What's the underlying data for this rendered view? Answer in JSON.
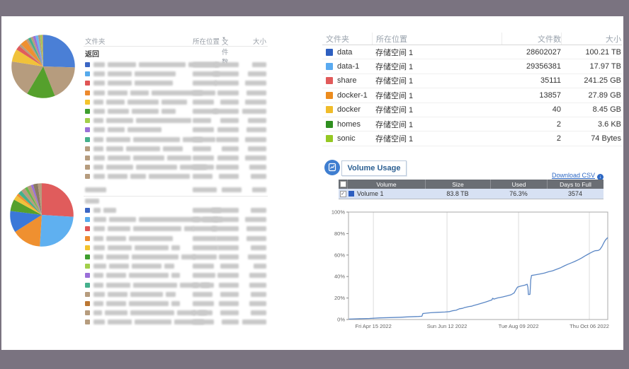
{
  "frame": {
    "bg": "#7a7380",
    "content_bg": "#ffffff"
  },
  "left_report": {
    "headers": {
      "folder": "文件夹",
      "location": "所在位置",
      "files": "文件数",
      "size": "大小",
      "sort_indicator": "▼"
    },
    "back_label": "返回",
    "blur_color": "#c9c9c9",
    "top_rows": [
      {
        "c": "#3b66c4",
        "segs": [
          16,
          40,
          66,
          44
        ],
        "lw": 36,
        "fw": 34,
        "sw": 20
      },
      {
        "c": "#56aaec",
        "segs": [
          16,
          34,
          58
        ],
        "lw": 38,
        "fw": 36,
        "sw": 26
      },
      {
        "c": "#e05555",
        "segs": [
          16,
          34,
          54
        ],
        "lw": 34,
        "fw": 34,
        "sw": 30
      },
      {
        "c": "#ed8a2d",
        "segs": [
          16,
          28,
          26,
          72
        ],
        "lw": 32,
        "fw": 30,
        "sw": 28
      },
      {
        "c": "#f3c32c",
        "segs": [
          14,
          26,
          44,
          36
        ],
        "lw": 30,
        "fw": 26,
        "sw": 30
      },
      {
        "c": "#3e9e2e",
        "segs": [
          16,
          30,
          38,
          20
        ],
        "lw": 36,
        "fw": 36,
        "sw": 34
      },
      {
        "c": "#a2cf4a",
        "segs": [
          14,
          38,
          78
        ],
        "lw": 26,
        "fw": 26,
        "sw": 26
      },
      {
        "c": "#9a6fd8",
        "segs": [
          16,
          24,
          48
        ],
        "lw": 30,
        "fw": 30,
        "sw": 28
      },
      {
        "c": "#45b08c",
        "segs": [
          14,
          34,
          66,
          28
        ],
        "lw": 32,
        "fw": 32,
        "sw": 30
      },
      {
        "c": "#b69c7e",
        "segs": [
          14,
          24,
          48,
          28
        ],
        "lw": 26,
        "fw": 24,
        "sw": 26
      },
      {
        "c": "#b69c7e",
        "segs": [
          16,
          32,
          44,
          34
        ],
        "lw": 30,
        "fw": 30,
        "sw": 30
      },
      {
        "c": "#b69c7e",
        "segs": [
          14,
          38,
          58,
          38
        ],
        "lw": 30,
        "fw": 32,
        "sw": 24
      },
      {
        "c": "#b69c7e",
        "segs": [
          16,
          28,
          22,
          58
        ],
        "lw": 28,
        "fw": 28,
        "sw": 22
      }
    ],
    "bottom_header_blur": {
      "folder_w": 30,
      "loc_w": 34,
      "files_w": 28,
      "size_w": 20,
      "back_w": 20
    },
    "bottom_rows": [
      {
        "c": "#3b66c4",
        "segs": [
          10,
          18
        ],
        "lw": 40,
        "fw": 38,
        "sw": 22
      },
      {
        "c": "#56aaec",
        "segs": [
          18,
          38,
          86,
          28
        ],
        "lw": 36,
        "fw": 36,
        "sw": 30
      },
      {
        "c": "#e05555",
        "segs": [
          16,
          32,
          68,
          14
        ],
        "lw": 34,
        "fw": 38,
        "sw": 28
      },
      {
        "c": "#ed8a2d",
        "segs": [
          14,
          28,
          62
        ],
        "lw": 34,
        "fw": 32,
        "sw": 28
      },
      {
        "c": "#f3c32c",
        "segs": [
          16,
          34,
          48,
          12
        ],
        "lw": 36,
        "fw": 30,
        "sw": 22
      },
      {
        "c": "#3e9e2e",
        "segs": [
          14,
          32,
          66,
          20
        ],
        "lw": 34,
        "fw": 28,
        "sw": 26
      },
      {
        "c": "#a2cf4a",
        "segs": [
          18,
          28,
          42,
          14
        ],
        "lw": 30,
        "fw": 26,
        "sw": 18
      },
      {
        "c": "#9a6fd8",
        "segs": [
          14,
          28,
          56,
          12
        ],
        "lw": 32,
        "fw": 30,
        "sw": 24
      },
      {
        "c": "#45b08c",
        "segs": [
          14,
          34,
          62,
          26,
          12
        ],
        "lw": 30,
        "fw": 28,
        "sw": 24
      },
      {
        "c": "#b69c7e",
        "segs": [
          16,
          28,
          46,
          14
        ],
        "lw": 28,
        "fw": 26,
        "sw": 22
      },
      {
        "c": "#bb7733",
        "segs": [
          14,
          28,
          56,
          12
        ],
        "lw": 30,
        "fw": 28,
        "sw": 24
      },
      {
        "c": "#b69c7e",
        "segs": [
          12,
          32,
          62,
          26,
          12
        ],
        "lw": 28,
        "fw": 26,
        "sw": 22
      },
      {
        "c": "#b69c7e",
        "segs": [
          16,
          34,
          52,
          42
        ],
        "lw": 30,
        "fw": 24,
        "sw": 34
      }
    ]
  },
  "folder_table": {
    "headers": [
      "文件夹",
      "所在位置",
      "文件数",
      "大小"
    ],
    "rows": [
      {
        "color": "#2e5fc0",
        "name": "data",
        "location": "存储空间 1",
        "files": "28602027",
        "size": "100.21 TB"
      },
      {
        "color": "#59aaf0",
        "name": "data-1",
        "location": "存储空间 1",
        "files": "29356381",
        "size": "17.97 TB"
      },
      {
        "color": "#e15a5a",
        "name": "share",
        "location": "存储空间 1",
        "files": "35111",
        "size": "241.25 GB"
      },
      {
        "color": "#ec8c1e",
        "name": "docker-1",
        "location": "存储空间 1",
        "files": "13857",
        "size": "27.89 GB"
      },
      {
        "color": "#f0bc2a",
        "name": "docker",
        "location": "存储空间 1",
        "files": "40",
        "size": "8.45 GB"
      },
      {
        "color": "#2f8f1f",
        "name": "homes",
        "location": "存储空间 1",
        "files": "2",
        "size": "3.6 KB"
      },
      {
        "color": "#95c823",
        "name": "sonic",
        "location": "存储空间 1",
        "files": "2",
        "size": "74 Bytes"
      }
    ]
  },
  "volume_usage": {
    "title": "Volume Usage",
    "download_csv": "Download CSV",
    "download_icon": "↓",
    "table": {
      "headers": [
        "Volume",
        "Size",
        "Used",
        "Days to Full"
      ],
      "rows": [
        {
          "color": "#2e5fc0",
          "name": "Volume 1",
          "size": "83.8 TB",
          "used": "76.3%",
          "days_to_full": "3574",
          "checked": "✓"
        }
      ]
    }
  },
  "chart_data": [
    {
      "type": "pie",
      "name": "top-left-pie",
      "slices": [
        {
          "color": "#4a7fd6",
          "value": 25.5
        },
        {
          "color": "#b69c7e",
          "value": 18.5
        },
        {
          "color": "#55a02c",
          "value": 14.5
        },
        {
          "color": "#b69c7e",
          "value": 19.0
        },
        {
          "color": "#f0c23a",
          "value": 6.5
        },
        {
          "color": "#e05c5c",
          "value": 2.3
        },
        {
          "color": "#b69c7e",
          "value": 1.2
        },
        {
          "color": "#ef9030",
          "value": 3.4
        },
        {
          "color": "#b69c7e",
          "value": 1.2
        },
        {
          "color": "#45b08c",
          "value": 1.4
        },
        {
          "color": "#b69c7e",
          "value": 1.2
        },
        {
          "color": "#9a6fd8",
          "value": 1.3
        },
        {
          "color": "#6db5ee",
          "value": 1.4
        },
        {
          "color": "#b69c7e",
          "value": 1.1
        },
        {
          "color": "#a2cf4a",
          "value": 0.8
        },
        {
          "color": "#b69c7e",
          "value": 0.7
        }
      ]
    },
    {
      "type": "pie",
      "name": "bottom-left-pie",
      "slices": [
        {
          "color": "#e05c5c",
          "value": 26
        },
        {
          "color": "#5fb0f0",
          "value": 25
        },
        {
          "color": "#ef9030",
          "value": 15
        },
        {
          "color": "#3b78d8",
          "value": 11
        },
        {
          "color": "#55a02c",
          "value": 6
        },
        {
          "color": "#f0c23a",
          "value": 2.5
        },
        {
          "color": "#ef9030",
          "value": 1.3
        },
        {
          "color": "#45b08c",
          "value": 2.0
        },
        {
          "color": "#b69c7e",
          "value": 2.2
        },
        {
          "color": "#67b84a",
          "value": 1.4
        },
        {
          "color": "#b69c7e",
          "value": 2.0
        },
        {
          "color": "#9a6fd8",
          "value": 1.2
        },
        {
          "color": "#8a7a62",
          "value": 2.4
        },
        {
          "color": "#b69c7e",
          "value": 2.0
        }
      ]
    },
    {
      "type": "line",
      "name": "volume-usage-trend",
      "ylim": [
        0,
        100
      ],
      "yticks": [
        "0%",
        "20%",
        "40%",
        "60%",
        "80%",
        "100%"
      ],
      "xticks": [
        {
          "label": "Fri Apr 15 2022",
          "f": 0.096
        },
        {
          "label": "Sun Jun 12 2022",
          "f": 0.38
        },
        {
          "label": "Tue Aug 09 2022",
          "f": 0.656
        },
        {
          "label": "Thu Oct 06 2022",
          "f": 0.929
        }
      ],
      "grid": "vertical-only",
      "line_color": "#5b87c5",
      "series": [
        {
          "name": "Volume 1",
          "points": [
            [
              0.002,
              0.4
            ],
            [
              0.04,
              0.7
            ],
            [
              0.081,
              1.0
            ],
            [
              0.12,
              1.5
            ],
            [
              0.159,
              1.8
            ],
            [
              0.2,
              2.1
            ],
            [
              0.233,
              2.5
            ],
            [
              0.27,
              2.8
            ],
            [
              0.283,
              3.0
            ],
            [
              0.287,
              5.6
            ],
            [
              0.3,
              5.9
            ],
            [
              0.317,
              6.3
            ],
            [
              0.344,
              6.7
            ],
            [
              0.372,
              7.0
            ],
            [
              0.39,
              7.4
            ],
            [
              0.4,
              8.1
            ],
            [
              0.415,
              8.6
            ],
            [
              0.428,
              10.0
            ],
            [
              0.44,
              10.4
            ],
            [
              0.446,
              11.0
            ],
            [
              0.465,
              12.1
            ],
            [
              0.475,
              12.4
            ],
            [
              0.483,
              13.1
            ],
            [
              0.497,
              14.0
            ],
            [
              0.511,
              15.0
            ],
            [
              0.53,
              16.4
            ],
            [
              0.544,
              17.5
            ],
            [
              0.553,
              18.2
            ],
            [
              0.556,
              19.8
            ],
            [
              0.561,
              19.0
            ],
            [
              0.576,
              20.1
            ],
            [
              0.594,
              21.0
            ],
            [
              0.613,
              22.1
            ],
            [
              0.627,
              23.0
            ],
            [
              0.639,
              24.8
            ],
            [
              0.645,
              27.5
            ],
            [
              0.652,
              30.2
            ],
            [
              0.664,
              31.1
            ],
            [
              0.68,
              32.0
            ],
            [
              0.689,
              32.8
            ],
            [
              0.692,
              30.0
            ],
            [
              0.694,
              23.2
            ],
            [
              0.7,
              23.4
            ],
            [
              0.703,
              37.0
            ],
            [
              0.706,
              41.0
            ],
            [
              0.719,
              41.5
            ],
            [
              0.738,
              42.4
            ],
            [
              0.756,
              43.3
            ],
            [
              0.772,
              44.5
            ],
            [
              0.787,
              45.3
            ],
            [
              0.803,
              46.8
            ],
            [
              0.819,
              48.3
            ],
            [
              0.833,
              50.0
            ],
            [
              0.847,
              51.5
            ],
            [
              0.861,
              52.8
            ],
            [
              0.874,
              54.2
            ],
            [
              0.888,
              55.8
            ],
            [
              0.9,
              57.4
            ],
            [
              0.911,
              59.0
            ],
            [
              0.922,
              60.5
            ],
            [
              0.933,
              62.0
            ],
            [
              0.943,
              63.2
            ],
            [
              0.951,
              64.0
            ],
            [
              0.963,
              64.3
            ],
            [
              0.97,
              65.2
            ],
            [
              0.978,
              68.0
            ],
            [
              0.985,
              71.5
            ],
            [
              0.991,
              74.0
            ],
            [
              1.0,
              76.3
            ]
          ]
        }
      ]
    }
  ]
}
